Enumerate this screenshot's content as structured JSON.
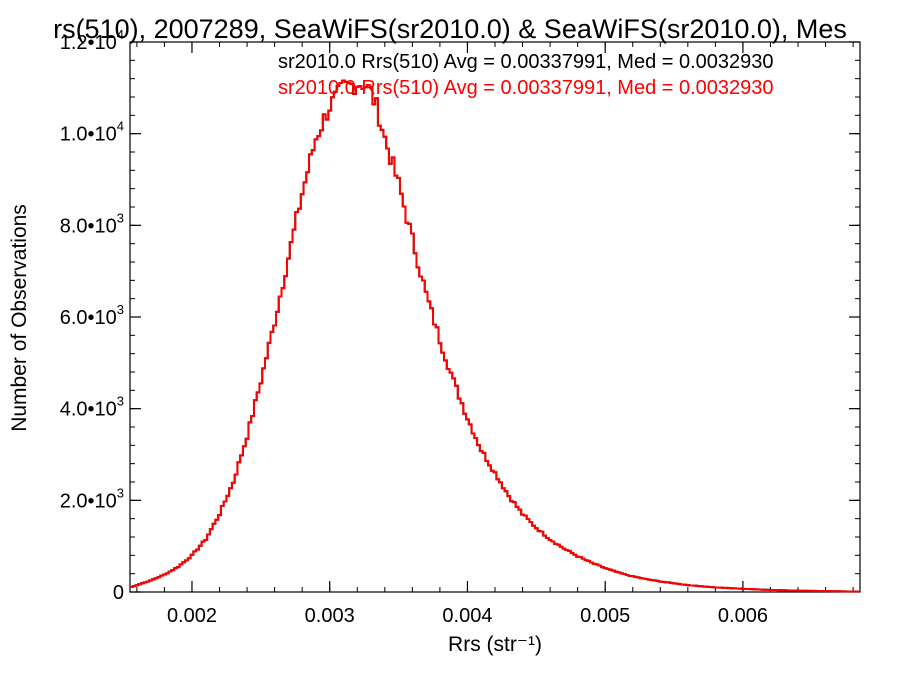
{
  "chart_data": {
    "type": "line",
    "title": "rs(510), 2007289, SeaWiFS(sr2010.0) & SeaWiFS(sr2010.0), Mes",
    "xlabel": "Rrs (str⁻¹)",
    "ylabel": "Number of Observations",
    "xlim": [
      0.00155,
      0.00685
    ],
    "ylim": [
      0,
      12000
    ],
    "grid": false,
    "legend_position": "top-right",
    "x_ticks": [
      {
        "value": 0.002,
        "label": "0.002"
      },
      {
        "value": 0.003,
        "label": "0.003"
      },
      {
        "value": 0.004,
        "label": "0.004"
      },
      {
        "value": 0.005,
        "label": "0.005"
      },
      {
        "value": 0.006,
        "label": "0.006"
      }
    ],
    "y_ticks": [
      {
        "value": 0,
        "mantissa": "0",
        "exp": ""
      },
      {
        "value": 2000,
        "mantissa": "2.0•10",
        "exp": "3"
      },
      {
        "value": 4000,
        "mantissa": "4.0•10",
        "exp": "3"
      },
      {
        "value": 6000,
        "mantissa": "6.0•10",
        "exp": "3"
      },
      {
        "value": 8000,
        "mantissa": "8.0•10",
        "exp": "3"
      },
      {
        "value": 10000,
        "mantissa": "1.0•10",
        "exp": "4"
      },
      {
        "value": 12000,
        "mantissa": "1.2•10",
        "exp": "4"
      }
    ],
    "x_minor_step": 0.0002,
    "y_minor_step": 400,
    "annotations": [
      {
        "text": "sr2010.0 Rrs(510) Avg = 0.00337991, Med = 0.0032930",
        "color": "#000000"
      },
      {
        "text": "sr2010.0 Rrs(510) Avg = 0.00337991, Med = 0.0032930",
        "color": "#ff0000"
      }
    ],
    "series": [
      {
        "color": "#000000",
        "x": [
          0.00155,
          0.0016,
          0.0017,
          0.0018,
          0.0019,
          0.002,
          0.0021,
          0.0022,
          0.0023,
          0.0024,
          0.0025,
          0.0026,
          0.0027,
          0.0028,
          0.0029,
          0.003,
          0.0031,
          0.0032,
          0.00325,
          0.0033,
          0.00335,
          0.0034,
          0.0035,
          0.0036,
          0.0037,
          0.0038,
          0.0039,
          0.004,
          0.0041,
          0.0042,
          0.0043,
          0.0044,
          0.0045,
          0.0046,
          0.0047,
          0.0048,
          0.0049,
          0.005,
          0.0051,
          0.0052,
          0.0053,
          0.0054,
          0.0055,
          0.0056,
          0.0058,
          0.006,
          0.0062,
          0.0064,
          0.0066,
          0.0068
        ],
        "y": [
          100,
          150,
          250,
          380,
          550,
          800,
          1150,
          1700,
          2400,
          3400,
          4600,
          5900,
          7300,
          8700,
          9900,
          10600,
          11000,
          11100,
          11100,
          10900,
          10500,
          9900,
          8900,
          7700,
          6500,
          5500,
          4600,
          3800,
          3100,
          2600,
          2100,
          1700,
          1400,
          1150,
          950,
          780,
          640,
          520,
          420,
          340,
          280,
          230,
          190,
          150,
          100,
          70,
          45,
          30,
          20,
          10
        ]
      },
      {
        "color": "#ff0000",
        "x": [
          0.00155,
          0.0016,
          0.0017,
          0.0018,
          0.0019,
          0.002,
          0.0021,
          0.0022,
          0.0023,
          0.0024,
          0.0025,
          0.0026,
          0.0027,
          0.0028,
          0.0029,
          0.003,
          0.0031,
          0.0032,
          0.00325,
          0.0033,
          0.00335,
          0.0034,
          0.0035,
          0.0036,
          0.0037,
          0.0038,
          0.0039,
          0.004,
          0.0041,
          0.0042,
          0.0043,
          0.0044,
          0.0045,
          0.0046,
          0.0047,
          0.0048,
          0.0049,
          0.005,
          0.0051,
          0.0052,
          0.0053,
          0.0054,
          0.0055,
          0.0056,
          0.0058,
          0.006,
          0.0062,
          0.0064,
          0.0066,
          0.0068
        ],
        "y": [
          100,
          150,
          250,
          380,
          550,
          800,
          1150,
          1700,
          2400,
          3400,
          4600,
          5900,
          7300,
          8700,
          9900,
          10600,
          11000,
          11100,
          11100,
          10900,
          10500,
          9900,
          8900,
          7700,
          6500,
          5500,
          4600,
          3800,
          3100,
          2600,
          2100,
          1700,
          1400,
          1150,
          950,
          780,
          640,
          520,
          420,
          340,
          280,
          230,
          190,
          150,
          100,
          70,
          45,
          30,
          20,
          10
        ]
      }
    ]
  }
}
